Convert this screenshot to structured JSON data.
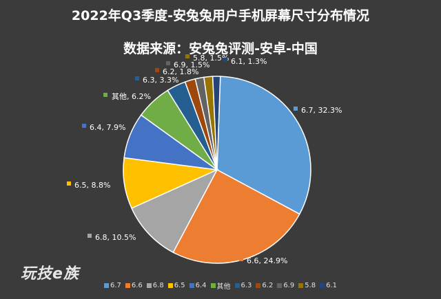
{
  "chart_data": {
    "type": "pie",
    "title": "2022年Q3季度-安兔兔用户手机屏幕尺寸分布情况",
    "subtitle": "数据来源：安兔兔评测-安卓-中国",
    "slices": [
      {
        "name": "6.7",
        "value": 32.3,
        "label": "6.7, 32.3%",
        "color": "#5b9bd5"
      },
      {
        "name": "6.6",
        "value": 24.9,
        "label": "6.6, 24.9%",
        "color": "#ed7d31"
      },
      {
        "name": "6.8",
        "value": 10.5,
        "label": "6.8, 10.5%",
        "color": "#a5a5a5"
      },
      {
        "name": "6.5",
        "value": 8.8,
        "label": "6.5, 8.8%",
        "color": "#ffc000"
      },
      {
        "name": "6.4",
        "value": 7.9,
        "label": "6.4, 7.9%",
        "color": "#4472c4"
      },
      {
        "name": "其他",
        "value": 6.2,
        "label": "其他, 6.2%",
        "color": "#70ad47"
      },
      {
        "name": "6.3",
        "value": 3.3,
        "label": "6.3, 3.3%",
        "color": "#255e91"
      },
      {
        "name": "6.2",
        "value": 1.8,
        "label": "6.2, 1.8%",
        "color": "#9e480e"
      },
      {
        "name": "6.9",
        "value": 1.5,
        "label": "6.9, 1.5%",
        "color": "#636363"
      },
      {
        "name": "5.8",
        "value": 1.5,
        "label": "5.8, 1.5%",
        "color": "#997300"
      },
      {
        "name": "6.1",
        "value": 1.3,
        "label": "6.1, 1.3%",
        "color": "#264478"
      }
    ],
    "legend_position": "bottom"
  },
  "watermark": "玩技e族"
}
